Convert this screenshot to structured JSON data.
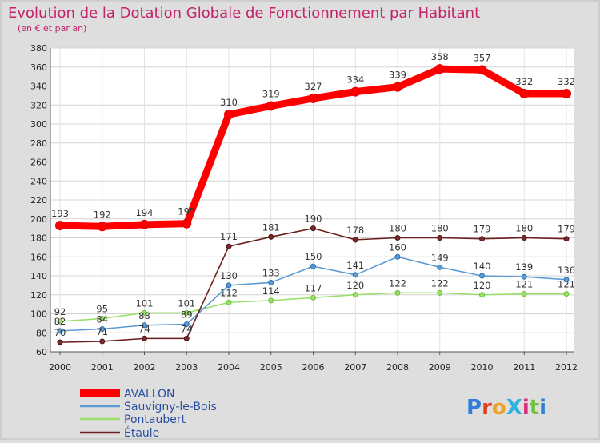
{
  "chart_data": {
    "type": "line",
    "title": "Evolution de la Dotation Globale de Fonctionnement par Habitant",
    "subtitle": "(en € et par an)",
    "xlabel": "",
    "ylabel": "",
    "ylim": [
      60,
      380
    ],
    "yticks": [
      60,
      80,
      100,
      120,
      140,
      160,
      180,
      200,
      220,
      240,
      260,
      280,
      300,
      320,
      340,
      360,
      380
    ],
    "x": [
      "2000",
      "2001",
      "2002",
      "2003",
      "2004",
      "2005",
      "2006",
      "2007",
      "2008",
      "2009",
      "2010",
      "2011",
      "2012"
    ],
    "grid": true,
    "legend_position": "bottom-left",
    "series": [
      {
        "name": "AVALLON",
        "color": "#ff0000",
        "values": [
          193,
          192,
          194,
          195,
          310,
          319,
          327,
          334,
          339,
          358,
          357,
          332,
          332
        ]
      },
      {
        "name": "Sauvigny-le-Bois",
        "color": "#5b9bd5",
        "values": [
          82,
          84,
          88,
          89,
          130,
          133,
          150,
          141,
          160,
          149,
          140,
          139,
          136
        ]
      },
      {
        "name": "Pontaubert",
        "color": "#99e06a",
        "values": [
          92,
          95,
          101,
          101,
          112,
          114,
          117,
          120,
          122,
          122,
          120,
          121,
          121
        ]
      },
      {
        "name": "Étaule",
        "color": "#6b1e1e",
        "values": [
          70,
          71,
          74,
          74,
          171,
          181,
          190,
          178,
          180,
          180,
          179,
          180,
          179
        ]
      }
    ]
  },
  "brand": {
    "text": "ProXiti"
  }
}
